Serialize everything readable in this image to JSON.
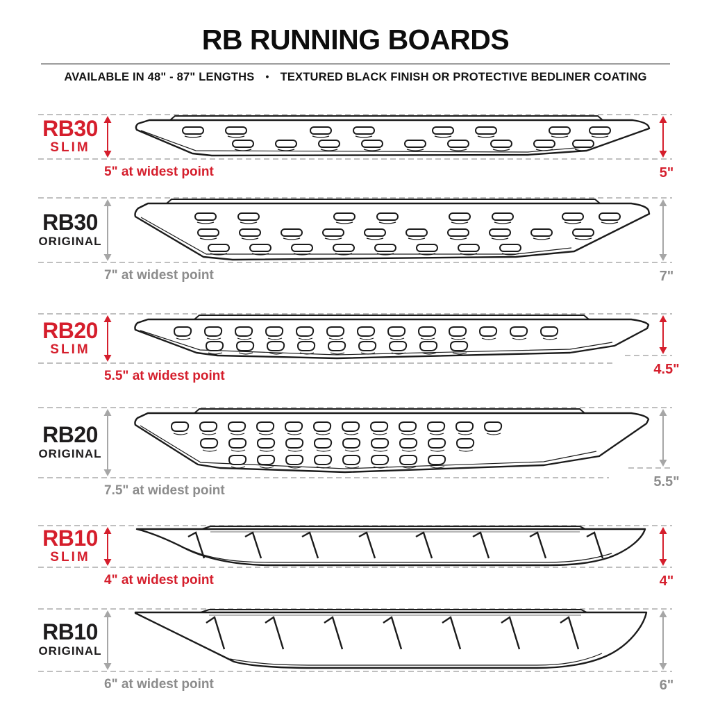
{
  "header": {
    "title": "RB RUNNING BOARDS",
    "subtitle_left": "AVAILABLE IN 48\" - 87\" LENGTHS",
    "subtitle_separator": "•",
    "subtitle_right": "TEXTURED BLACK FINISH OR PROTECTIVE BEDLINER COATING"
  },
  "colors": {
    "accent_red": "#d51e2c",
    "dimension_gray": "#8c8c8c",
    "line_ink": "#1b1b1b",
    "dash_gray": "#bfbfbf"
  },
  "products": [
    {
      "model": "RB30",
      "variant": "SLIM",
      "color": "red",
      "left_dim": "5\" at widest point",
      "right_dim": "5\""
    },
    {
      "model": "RB30",
      "variant": "ORIGINAL",
      "color": "gray",
      "left_dim": "7\" at widest point",
      "right_dim": "7\""
    },
    {
      "model": "RB20",
      "variant": "SLIM",
      "color": "red",
      "left_dim": "5.5\" at widest point",
      "right_dim": "4.5\""
    },
    {
      "model": "RB20",
      "variant": "ORIGINAL",
      "color": "gray",
      "left_dim": "7.5\" at widest point",
      "right_dim": "5.5\""
    },
    {
      "model": "RB10",
      "variant": "SLIM",
      "color": "red",
      "left_dim": "4\" at widest point",
      "right_dim": "4\""
    },
    {
      "model": "RB10",
      "variant": "ORIGINAL",
      "color": "gray",
      "left_dim": "6\" at widest point",
      "right_dim": "6\""
    }
  ]
}
